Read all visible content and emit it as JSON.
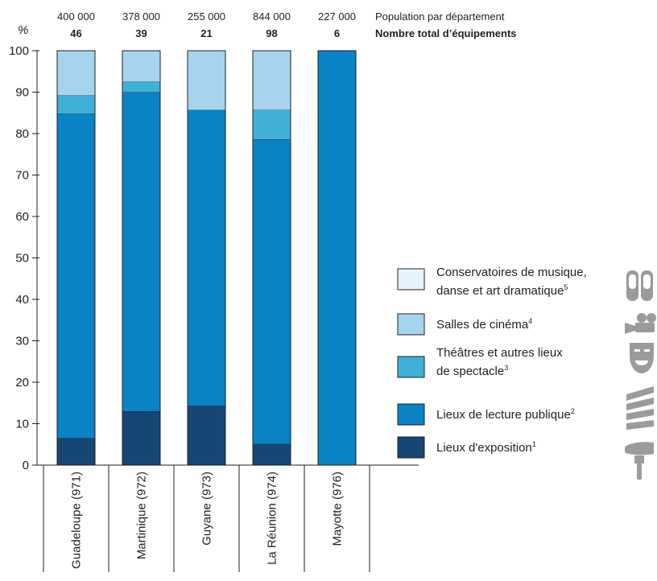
{
  "chart_data": {
    "type": "bar",
    "stacked": true,
    "unit_label": "%",
    "ylim": [
      0,
      100
    ],
    "y_ticks": [
      0,
      10,
      20,
      30,
      40,
      50,
      60,
      70,
      80,
      90,
      100
    ],
    "categories": [
      "Guadeloupe (971)",
      "Martinique (972)",
      "Guyane (973)",
      "La Réunion (974)",
      "Mayotte (976)"
    ],
    "header_rows": [
      {
        "label": "Population par département",
        "bold": false,
        "values": [
          "400 000",
          "378 000",
          "255 000",
          "844 000",
          "227 000"
        ]
      },
      {
        "label": "Nombre total d’équipements",
        "bold": true,
        "values": [
          "46",
          "39",
          "21",
          "98",
          "6"
        ]
      }
    ],
    "series": [
      {
        "name": "Lieux d'exposition",
        "sup": "1",
        "color": "#164674",
        "icon": "paintbrush-icon",
        "values": [
          6.5,
          13,
          14.3,
          5.1,
          0
        ]
      },
      {
        "name": "Lieux de lecture publique",
        "sup": "2",
        "color": "#0a83c6",
        "icon": "books-icon",
        "values": [
          78.3,
          77,
          71.4,
          73.5,
          100
        ]
      },
      {
        "name": "Théâtres et autres lieux de spectacle",
        "line1": "Théâtres et autres lieux",
        "line2": "de spectacle",
        "sup": "3",
        "color": "#3fb1d8",
        "icon": "theatre-mask-icon",
        "values": [
          4.4,
          2.5,
          0,
          7.1,
          0
        ]
      },
      {
        "name": "Salles de cinéma",
        "sup": "4",
        "color": "#a6d4ef",
        "icon": "film-camera-icon",
        "values": [
          10.8,
          7.5,
          14.3,
          14.3,
          0
        ]
      },
      {
        "name": "Conservatoires de musique, danse et art dramatique",
        "line1": "Conservatoires de musique,",
        "line2": "danse et art dramatique",
        "sup": "5",
        "color": "#e4f4fc",
        "icon": "ballet-shoes-icon",
        "values": [
          0,
          0,
          0,
          0,
          0
        ]
      }
    ],
    "legend_position": "right",
    "grid": false
  }
}
